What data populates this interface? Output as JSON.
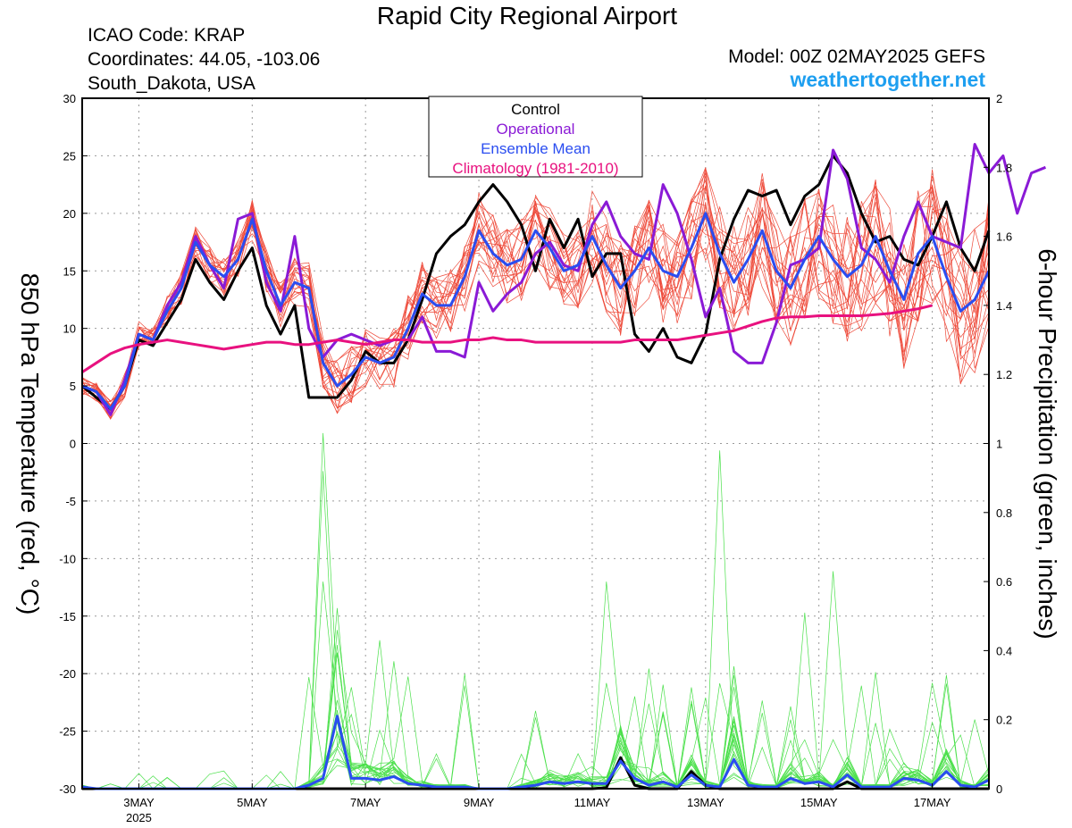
{
  "header": {
    "title": "Rapid City Regional Airport",
    "icao": "ICAO Code: KRAP",
    "coordinates": "Coordinates: 44.05, -103.06",
    "location": "South_Dakota, USA",
    "model": "Model: 00Z 02MAY2025 GEFS",
    "site": "weathertogether.net"
  },
  "colors": {
    "members_temp": "#ee4a3a",
    "members_precip": "#4be04b",
    "control": "#000000",
    "operational": "#8a1ad6",
    "ensemble_mean": "#2a4df0",
    "climatology": "#e8117f"
  },
  "chart_data": {
    "type": "line",
    "title": "Rapid City Regional Airport",
    "ylabel": "850 hPa Temperature (red, °C)",
    "y2label": "6-hour Precipitation (green, inches)",
    "xlim": [
      0,
      64
    ],
    "ylim": [
      -30,
      30
    ],
    "y2lim": [
      0,
      2
    ],
    "x_unit": "6-hour steps from 00Z 02MAY2025",
    "x_ticks": [
      {
        "x": 4,
        "label": "3MAY",
        "sub": "2025"
      },
      {
        "x": 12,
        "label": "5MAY"
      },
      {
        "x": 20,
        "label": "7MAY"
      },
      {
        "x": 28,
        "label": "9MAY"
      },
      {
        "x": 36,
        "label": "11MAY"
      },
      {
        "x": 44,
        "label": "13MAY"
      },
      {
        "x": 52,
        "label": "15MAY"
      },
      {
        "x": 60,
        "label": "17MAY"
      }
    ],
    "y_ticks": [
      30,
      25,
      20,
      15,
      10,
      5,
      0,
      -5,
      -10,
      -15,
      -20,
      -25,
      -30
    ],
    "y2_ticks": [
      2,
      1.8,
      1.6,
      1.4,
      1.2,
      1,
      0.8,
      0.6,
      0.4,
      0.2,
      0
    ],
    "grid": true,
    "legend": {
      "position": "top-center",
      "entries": [
        "Control",
        "Operational",
        "Ensemble Mean",
        "Climatology (1981-2010)"
      ]
    },
    "series": [
      {
        "name": "Control",
        "axis": "temperature",
        "values": [
          5,
          4,
          3,
          5,
          9,
          8.5,
          10.5,
          12.5,
          16,
          14,
          12.5,
          15,
          17,
          12,
          9.5,
          12,
          4,
          4,
          4,
          5.5,
          8,
          7,
          7,
          9,
          12.5,
          16.5,
          18,
          19,
          21,
          22.5,
          21,
          19,
          15,
          19.5,
          17,
          19.5,
          14.5,
          16.5,
          16.5,
          9.5,
          8,
          10,
          7.5,
          7,
          9.5,
          16,
          19.5,
          22,
          21.5,
          22,
          19,
          21.5,
          22.5,
          25,
          23.5,
          20,
          17.5,
          18,
          16,
          15.5,
          18,
          21,
          17,
          15,
          18.5
        ]
      },
      {
        "name": "Operational",
        "axis": "temperature",
        "values": [
          5,
          4.5,
          2.5,
          5.5,
          9.5,
          9,
          12,
          14,
          18,
          15.5,
          13.5,
          19.5,
          20,
          14,
          11.5,
          18,
          10,
          7.5,
          9,
          9.5,
          9,
          8.5,
          9,
          9,
          11,
          8,
          8,
          7.5,
          14,
          11.5,
          13,
          14,
          16.5,
          17.5,
          15.5,
          15,
          19,
          21,
          18,
          16.5,
          16,
          22.5,
          20,
          16,
          11,
          13.5,
          8,
          7,
          7,
          10.5,
          15.5,
          16,
          17,
          25.5,
          23,
          17,
          16,
          14,
          18,
          21,
          18,
          17.5,
          17,
          26,
          23.5,
          25,
          20,
          23.5,
          24
        ]
      },
      {
        "name": "Ensemble Mean",
        "axis": "temperature",
        "values": [
          5,
          4.5,
          3,
          5,
          9.5,
          9,
          11.5,
          13.5,
          17.5,
          15.5,
          14.5,
          16,
          19.5,
          15,
          12,
          14,
          13.5,
          7,
          5,
          6,
          7.5,
          7,
          7.5,
          10,
          13,
          12,
          12,
          14.5,
          18.5,
          16.5,
          15.5,
          16,
          18.5,
          17,
          15,
          15.5,
          18,
          15.5,
          13.5,
          15,
          17,
          15,
          14.5,
          17,
          20,
          16.5,
          14,
          16,
          18.5,
          15,
          13.5,
          16,
          18,
          16,
          14.5,
          15.5,
          18,
          15,
          12.5,
          16.5,
          18,
          14.5,
          11.5,
          12.5,
          15
        ]
      },
      {
        "name": "Climatology (1981-2010)",
        "axis": "temperature",
        "values": [
          6.2,
          7,
          7.8,
          8.3,
          8.6,
          8.8,
          9,
          8.8,
          8.6,
          8.4,
          8.2,
          8.4,
          8.6,
          8.8,
          8.8,
          8.6,
          8.6,
          8.8,
          9,
          8.8,
          8.6,
          8.8,
          9,
          9,
          8.8,
          8.8,
          8.8,
          9,
          9,
          9.2,
          9,
          9,
          8.8,
          8.8,
          8.8,
          8.8,
          8.8,
          8.8,
          8.8,
          9,
          9,
          9,
          9,
          9.2,
          9.4,
          9.6,
          9.8,
          10.2,
          10.6,
          10.9,
          11,
          11,
          11.1,
          11.1,
          11.1,
          11.1,
          11.2,
          11.3,
          11.5,
          11.7,
          12
        ]
      },
      {
        "name": "Control",
        "axis": "precipitation",
        "values": [
          0,
          0,
          0,
          0,
          0,
          0,
          0,
          0,
          0,
          0,
          0,
          0,
          0,
          0,
          0,
          0,
          0,
          0,
          0,
          0,
          0,
          0,
          0,
          0,
          0,
          0,
          0,
          0,
          0,
          0,
          0,
          0,
          0,
          0,
          0,
          0,
          0,
          0.003,
          0.09,
          0.01,
          0,
          0,
          0,
          0.05,
          0.01,
          0,
          0,
          0,
          0,
          0,
          0,
          0,
          0,
          0,
          0.02,
          0,
          0,
          0,
          0,
          0,
          0,
          0,
          0,
          0,
          0
        ]
      },
      {
        "name": "Ensemble Mean",
        "axis": "precipitation",
        "values": [
          0.005,
          0,
          0,
          0,
          0,
          0,
          0,
          0,
          0,
          0,
          0,
          0,
          0,
          0,
          0,
          0,
          0.01,
          0.03,
          0.21,
          0.03,
          0.03,
          0.025,
          0.035,
          0.015,
          0.01,
          0.005,
          0.005,
          0.005,
          0,
          0,
          0,
          0.005,
          0.01,
          0.02,
          0.015,
          0.02,
          0.015,
          0.015,
          0.08,
          0.03,
          0.01,
          0.02,
          0.005,
          0.04,
          0.01,
          0.005,
          0.085,
          0.01,
          0.005,
          0.005,
          0.03,
          0.015,
          0.02,
          0.005,
          0.04,
          0.005,
          0.005,
          0.005,
          0.03,
          0.025,
          0.01,
          0.05,
          0.01,
          0.005,
          0.025
        ]
      }
    ]
  }
}
